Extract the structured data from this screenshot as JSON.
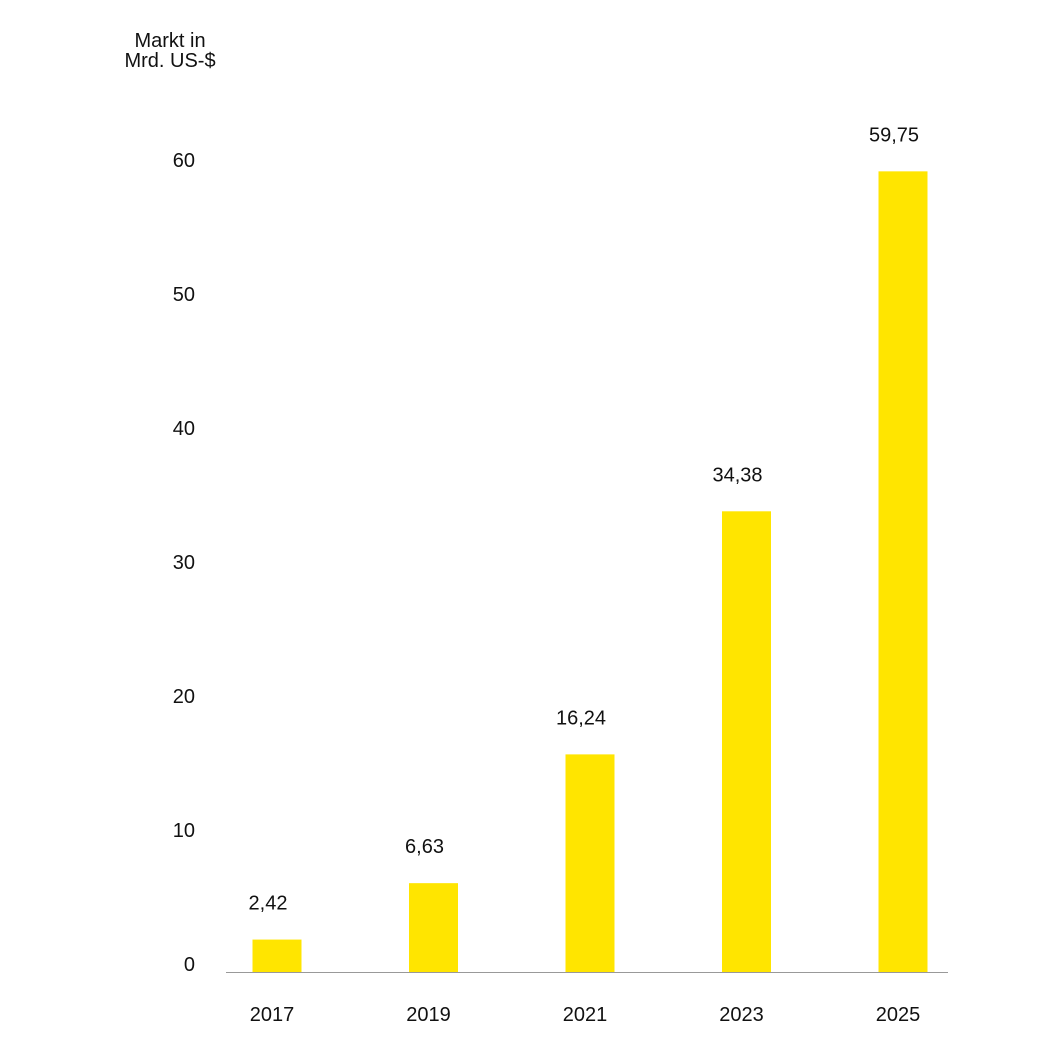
{
  "chart_data": {
    "type": "bar",
    "ylabel_line1": "Markt in",
    "ylabel_line2": "Mrd. US-$",
    "categories": [
      "2017",
      "2019",
      "2021",
      "2023",
      "2025"
    ],
    "values": [
      2.42,
      6.63,
      16.24,
      34.38,
      59.75
    ],
    "value_labels": [
      "2,42",
      "6,63",
      "16,24",
      "34,38",
      "59,75"
    ],
    "yticks": [
      0,
      10,
      20,
      30,
      40,
      50,
      60
    ],
    "ylim": [
      0,
      60
    ],
    "grid": false,
    "bar_color": "#FFE500",
    "axis_color": "#999999",
    "text_color": "#111111"
  }
}
